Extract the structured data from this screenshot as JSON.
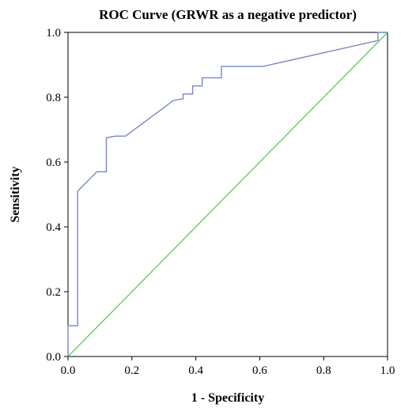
{
  "chart_data": {
    "type": "line",
    "title": "ROC Curve (GRWR as a negative predictor)",
    "xlabel": "1 - Specificity",
    "ylabel": "Sensitivity",
    "xlim": [
      0.0,
      1.0
    ],
    "ylim": [
      0.0,
      1.0
    ],
    "x_ticks": [
      0.0,
      0.2,
      0.4,
      0.6,
      0.8,
      1.0
    ],
    "y_ticks": [
      0.0,
      0.2,
      0.4,
      0.6,
      0.8,
      1.0
    ],
    "x_tick_labels": [
      "0.0",
      "0.2",
      "0.4",
      "0.6",
      "0.8",
      "1.0"
    ],
    "y_tick_labels": [
      "0.0",
      "0.2",
      "0.4",
      "0.6",
      "0.8",
      "1.0"
    ],
    "grid": false,
    "legend": "none",
    "series": [
      {
        "color": "#7a86c8",
        "points": [
          [
            0.0,
            0.0
          ],
          [
            0.0,
            0.095
          ],
          [
            0.03,
            0.095
          ],
          [
            0.03,
            0.51
          ],
          [
            0.09,
            0.57
          ],
          [
            0.12,
            0.57
          ],
          [
            0.12,
            0.675
          ],
          [
            0.15,
            0.68
          ],
          [
            0.18,
            0.68
          ],
          [
            0.33,
            0.79
          ],
          [
            0.36,
            0.795
          ],
          [
            0.36,
            0.81
          ],
          [
            0.39,
            0.81
          ],
          [
            0.39,
            0.835
          ],
          [
            0.42,
            0.835
          ],
          [
            0.42,
            0.86
          ],
          [
            0.48,
            0.86
          ],
          [
            0.48,
            0.895
          ],
          [
            0.61,
            0.895
          ],
          [
            0.97,
            0.975
          ],
          [
            0.97,
            1.0
          ],
          [
            1.0,
            1.0
          ]
        ]
      },
      {
        "color": "#6cc86c",
        "points": [
          [
            0.0,
            0.0
          ],
          [
            1.0,
            1.0
          ]
        ]
      }
    ]
  }
}
